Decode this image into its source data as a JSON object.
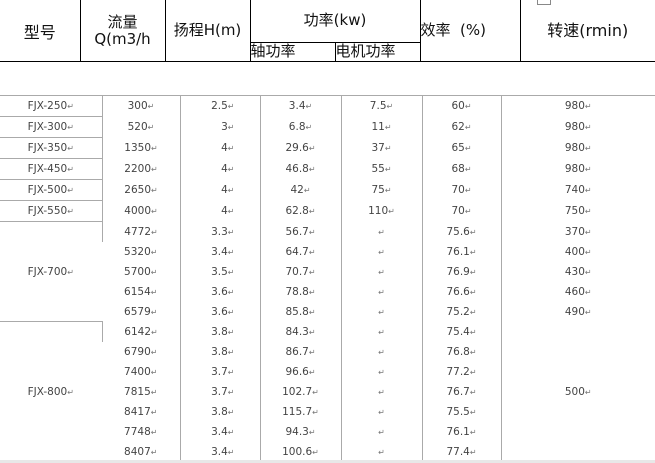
{
  "header": {
    "model": "型号",
    "flow_line1": "流量",
    "flow_line2": "Q(m3/h",
    "head": "扬程H(m)",
    "power": "功率(kw)",
    "shaft_power": "轴功率",
    "motor_power": "电机功率",
    "efficiency": "效率  (%)",
    "speed": "转速(rmin)"
  },
  "groups": [
    {
      "model": "FJX-250",
      "rows": [
        {
          "flow": "300",
          "head": "2.5",
          "shaft": "3.4",
          "motor": "7.5",
          "eff": "60",
          "speed": "980"
        }
      ]
    },
    {
      "model": "FJX-300",
      "rows": [
        {
          "flow": "520",
          "head": "3",
          "shaft": "6.8",
          "motor": "11",
          "eff": "62",
          "speed": "980"
        }
      ]
    },
    {
      "model": "FJX-350",
      "rows": [
        {
          "flow": "1350",
          "head": "4",
          "shaft": "29.6",
          "motor": "37",
          "eff": "65",
          "speed": "980"
        }
      ]
    },
    {
      "model": "FJX-450",
      "rows": [
        {
          "flow": "2200",
          "head": "4",
          "shaft": "46.8",
          "motor": "55",
          "eff": "68",
          "speed": "980"
        }
      ]
    },
    {
      "model": "FJX-500",
      "rows": [
        {
          "flow": "2650",
          "head": "4",
          "shaft": "42",
          "motor": "75",
          "eff": "70",
          "speed": "740"
        }
      ]
    },
    {
      "model": "FJX-550",
      "rows": [
        {
          "flow": "4000",
          "head": "4",
          "shaft": "62.8",
          "motor": "110",
          "eff": "70",
          "speed": "750"
        }
      ]
    },
    {
      "model": "FJX-700",
      "rows": [
        {
          "flow": "4772",
          "head": "3.3",
          "shaft": "56.7",
          "motor": "",
          "eff": "75.6",
          "speed": "370"
        },
        {
          "flow": "5320",
          "head": "3.4",
          "shaft": "64.7",
          "motor": "",
          "eff": "76.1",
          "speed": "400"
        },
        {
          "flow": "5700",
          "head": "3.5",
          "shaft": "70.7",
          "motor": "",
          "eff": "76.9",
          "speed": "430"
        },
        {
          "flow": "6154",
          "head": "3.6",
          "shaft": "78.8",
          "motor": "",
          "eff": "76.6",
          "speed": "460"
        },
        {
          "flow": "6579",
          "head": "3.6",
          "shaft": "85.8",
          "motor": "",
          "eff": "75.2",
          "speed": "490"
        }
      ]
    },
    {
      "model": "FJX-800",
      "speed": "500",
      "rows": [
        {
          "flow": "6142",
          "head": "3.8",
          "shaft": "84.3",
          "motor": "",
          "eff": "75.4"
        },
        {
          "flow": "6790",
          "head": "3.8",
          "shaft": "86.7",
          "motor": "",
          "eff": "76.8"
        },
        {
          "flow": "7400",
          "head": "3.7",
          "shaft": "96.6",
          "motor": "",
          "eff": "77.2"
        },
        {
          "flow": "7815",
          "head": "3.7",
          "shaft": "102.7",
          "motor": "",
          "eff": "76.7"
        },
        {
          "flow": "8417",
          "head": "3.8",
          "shaft": "115.7",
          "motor": "",
          "eff": "75.5"
        },
        {
          "flow": "7748",
          "head": "3.4",
          "shaft": "94.3",
          "motor": "",
          "eff": "76.1"
        },
        {
          "flow": "8407",
          "head": "3.4",
          "shaft": "100.6",
          "motor": "",
          "eff": "77.4"
        }
      ]
    }
  ]
}
